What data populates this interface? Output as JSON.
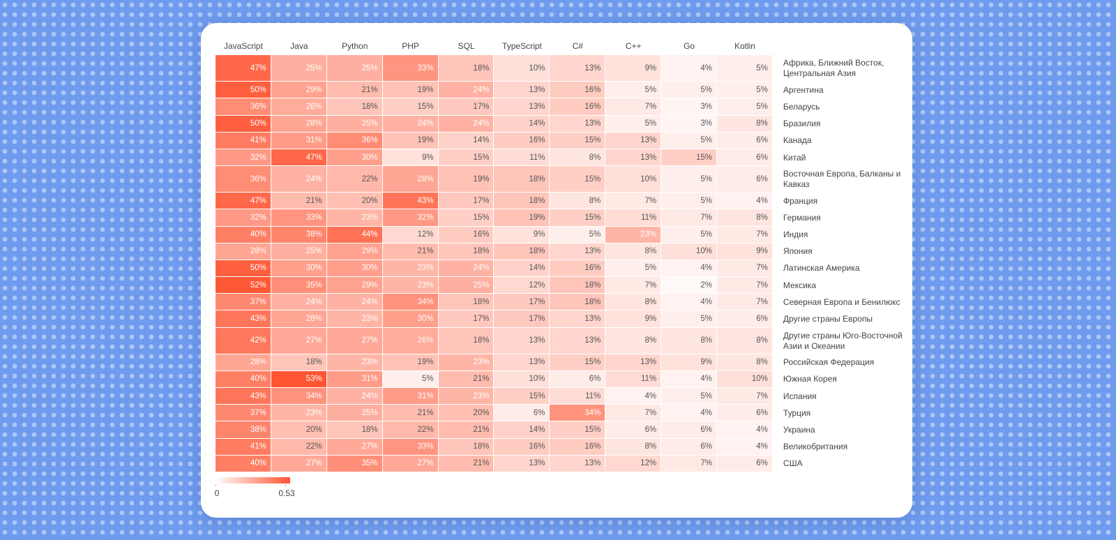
{
  "chart_data": {
    "type": "heatmap",
    "x": [
      "JavaScript",
      "Java",
      "Python",
      "PHP",
      "SQL",
      "TypeScript",
      "C#",
      "C++",
      "Go",
      "Kotlin"
    ],
    "y": [
      "Африка, Ближний Восток, Центральная Азия",
      "Аргентина",
      "Беларусь",
      "Бразилия",
      "Канада",
      "Китай",
      "Восточная Европа, Балканы и Кавказ",
      "Франция",
      "Германия",
      "Индия",
      "Япония",
      "Латинская Америка",
      "Мексика",
      "Северная Европа и Бенилюкс",
      "Другие страны Европы",
      "Другие страны Юго-Восточной Азии и Океании",
      "Российская Федерация",
      "Южная Корея",
      "Испания",
      "Турция",
      "Украина",
      "Великобритания",
      "США"
    ],
    "values": [
      [
        0.47,
        0.25,
        0.25,
        0.33,
        0.18,
        0.1,
        0.13,
        0.09,
        0.04,
        0.05
      ],
      [
        0.5,
        0.29,
        0.21,
        0.19,
        0.24,
        0.13,
        0.16,
        0.05,
        0.05,
        0.05
      ],
      [
        0.36,
        0.26,
        0.18,
        0.15,
        0.17,
        0.13,
        0.16,
        0.07,
        0.03,
        0.05
      ],
      [
        0.5,
        0.28,
        0.25,
        0.24,
        0.24,
        0.14,
        0.13,
        0.05,
        0.03,
        0.08
      ],
      [
        0.41,
        0.31,
        0.36,
        0.19,
        0.14,
        0.16,
        0.15,
        0.13,
        0.05,
        0.06
      ],
      [
        0.32,
        0.47,
        0.3,
        0.09,
        0.15,
        0.11,
        0.08,
        0.13,
        0.15,
        0.06
      ],
      [
        0.36,
        0.24,
        0.22,
        0.28,
        0.19,
        0.18,
        0.15,
        0.1,
        0.05,
        0.06
      ],
      [
        0.47,
        0.21,
        0.2,
        0.43,
        0.17,
        0.18,
        0.08,
        0.07,
        0.05,
        0.04
      ],
      [
        0.32,
        0.33,
        0.23,
        0.32,
        0.15,
        0.19,
        0.15,
        0.11,
        0.07,
        0.08
      ],
      [
        0.4,
        0.38,
        0.44,
        0.12,
        0.16,
        0.09,
        0.05,
        0.23,
        0.05,
        0.07
      ],
      [
        0.28,
        0.25,
        0.29,
        0.21,
        0.18,
        0.18,
        0.13,
        0.08,
        0.1,
        0.09
      ],
      [
        0.5,
        0.3,
        0.3,
        0.23,
        0.24,
        0.14,
        0.16,
        0.05,
        0.04,
        0.07
      ],
      [
        0.52,
        0.35,
        0.29,
        0.23,
        0.25,
        0.12,
        0.18,
        0.07,
        0.02,
        0.07
      ],
      [
        0.37,
        0.24,
        0.24,
        0.34,
        0.18,
        0.17,
        0.18,
        0.08,
        0.04,
        0.07
      ],
      [
        0.43,
        0.28,
        0.23,
        0.3,
        0.17,
        0.17,
        0.13,
        0.09,
        0.05,
        0.06
      ],
      [
        0.42,
        0.27,
        0.27,
        0.26,
        0.18,
        0.13,
        0.13,
        0.08,
        0.08,
        0.08
      ],
      [
        0.28,
        0.18,
        0.23,
        0.19,
        0.23,
        0.13,
        0.15,
        0.13,
        0.09,
        0.08
      ],
      [
        0.4,
        0.53,
        0.31,
        0.05,
        0.21,
        0.1,
        0.06,
        0.11,
        0.04,
        0.1
      ],
      [
        0.43,
        0.34,
        0.24,
        0.31,
        0.23,
        0.15,
        0.11,
        0.04,
        0.05,
        0.07
      ],
      [
        0.37,
        0.23,
        0.25,
        0.21,
        0.2,
        0.06,
        0.34,
        0.07,
        0.04,
        0.06
      ],
      [
        0.38,
        0.2,
        0.18,
        0.22,
        0.21,
        0.14,
        0.15,
        0.06,
        0.06,
        0.04
      ],
      [
        0.41,
        0.22,
        0.27,
        0.33,
        0.18,
        0.16,
        0.16,
        0.08,
        0.06,
        0.04
      ],
      [
        0.4,
        0.27,
        0.35,
        0.27,
        0.21,
        0.13,
        0.13,
        0.12,
        0.07,
        0.06
      ]
    ],
    "value_labels": [
      [
        "47%",
        "25%",
        "25%",
        "33%",
        "18%",
        "10%",
        "13%",
        "9%",
        "4%",
        "5%"
      ],
      [
        "50%",
        "29%",
        "21%",
        "19%",
        "24%",
        "13%",
        "16%",
        "5%",
        "5%",
        "5%"
      ],
      [
        "36%",
        "26%",
        "18%",
        "15%",
        "17%",
        "13%",
        "16%",
        "7%",
        "3%",
        "5%"
      ],
      [
        "50%",
        "28%",
        "25%",
        "24%",
        "24%",
        "14%",
        "13%",
        "5%",
        "3%",
        "8%"
      ],
      [
        "41%",
        "31%",
        "36%",
        "19%",
        "14%",
        "16%",
        "15%",
        "13%",
        "5%",
        "6%"
      ],
      [
        "32%",
        "47%",
        "30%",
        "9%",
        "15%",
        "11%",
        "8%",
        "13%",
        "15%",
        "6%"
      ],
      [
        "36%",
        "24%",
        "22%",
        "28%",
        "19%",
        "18%",
        "15%",
        "10%",
        "5%",
        "6%"
      ],
      [
        "47%",
        "21%",
        "20%",
        "43%",
        "17%",
        "18%",
        "8%",
        "7%",
        "5%",
        "4%"
      ],
      [
        "32%",
        "33%",
        "23%",
        "32%",
        "15%",
        "19%",
        "15%",
        "11%",
        "7%",
        "8%"
      ],
      [
        "40%",
        "38%",
        "44%",
        "12%",
        "16%",
        "9%",
        "5%",
        "23%",
        "5%",
        "7%"
      ],
      [
        "28%",
        "25%",
        "29%",
        "21%",
        "18%",
        "18%",
        "13%",
        "8%",
        "10%",
        "9%"
      ],
      [
        "50%",
        "30%",
        "30%",
        "23%",
        "24%",
        "14%",
        "16%",
        "5%",
        "4%",
        "7%"
      ],
      [
        "52%",
        "35%",
        "29%",
        "23%",
        "25%",
        "12%",
        "18%",
        "7%",
        "2%",
        "7%"
      ],
      [
        "37%",
        "24%",
        "24%",
        "34%",
        "18%",
        "17%",
        "18%",
        "8%",
        "4%",
        "7%"
      ],
      [
        "43%",
        "28%",
        "23%",
        "30%",
        "17%",
        "17%",
        "13%",
        "9%",
        "5%",
        "6%"
      ],
      [
        "42%",
        "27%",
        "27%",
        "26%",
        "18%",
        "13%",
        "13%",
        "8%",
        "8%",
        "8%"
      ],
      [
        "28%",
        "18%",
        "23%",
        "19%",
        "23%",
        "13%",
        "15%",
        "13%",
        "9%",
        "8%"
      ],
      [
        "40%",
        "53%",
        "31%",
        "5%",
        "21%",
        "10%",
        "6%",
        "11%",
        "4%",
        "10%"
      ],
      [
        "43%",
        "34%",
        "24%",
        "31%",
        "23%",
        "15%",
        "11%",
        "4%",
        "5%",
        "7%"
      ],
      [
        "37%",
        "23%",
        "25%",
        "21%",
        "20%",
        "6%",
        "34%",
        "7%",
        "4%",
        "6%"
      ],
      [
        "38%",
        "20%",
        "18%",
        "22%",
        "21%",
        "14%",
        "15%",
        "6%",
        "6%",
        "4%"
      ],
      [
        "41%",
        "22%",
        "27%",
        "33%",
        "18%",
        "16%",
        "16%",
        "8%",
        "6%",
        "4%"
      ],
      [
        "40%",
        "27%",
        "35%",
        "27%",
        "21%",
        "13%",
        "13%",
        "12%",
        "7%",
        "6%"
      ]
    ],
    "clim": [
      0,
      0.53
    ],
    "cticks": [
      0,
      0.53
    ],
    "colors": [
      "#ffffff",
      "#ff5533"
    ]
  }
}
